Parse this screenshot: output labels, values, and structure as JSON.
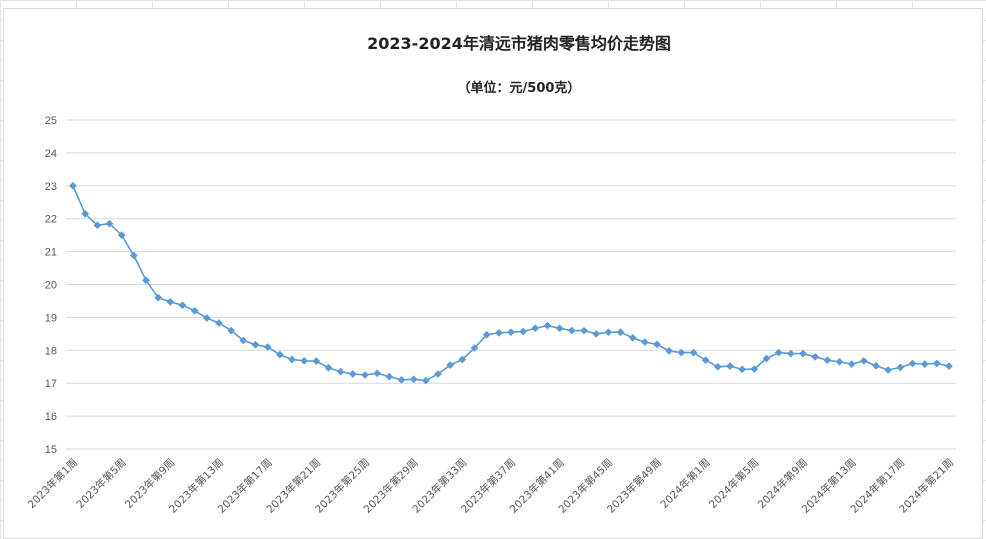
{
  "chart_data": {
    "type": "line",
    "title": "2023-2024年清远市猪肉零售均价走势图",
    "subtitle": "（单位：元/500克）",
    "xlabel": "",
    "ylabel": "",
    "ylim": [
      15,
      25
    ],
    "yticks": [
      "25",
      "24",
      "23",
      "22",
      "21",
      "20",
      "19",
      "18",
      "17",
      "16",
      "15"
    ],
    "grid": true,
    "legend": "none",
    "series_color": "#5b9bd5",
    "x_tick_labels": [
      "2023年第1周",
      "2023年第5周",
      "2023年第9周",
      "2023年第13周",
      "2023年第17周",
      "2023年第21周",
      "2023年第25周",
      "2023年第29周",
      "2023年第33周",
      "2023年第37周",
      "2023年第41周",
      "2023年第45周",
      "2023年第49周",
      "2024年第1周",
      "2024年第5周",
      "2024年第9周",
      "2024年第13周",
      "2024年第17周",
      "2024年第21周"
    ],
    "series": [
      {
        "values": [
          23.0,
          22.15,
          21.8,
          21.85,
          21.5,
          20.88,
          20.13,
          19.6,
          19.47,
          19.37,
          19.2,
          18.98,
          18.83,
          18.6,
          18.3,
          18.17,
          18.1,
          17.87,
          17.72,
          17.68,
          17.67,
          17.47,
          17.35,
          17.28,
          17.25,
          17.3,
          17.2,
          17.1,
          17.12,
          17.08,
          17.28,
          17.55,
          17.72,
          18.07,
          18.47,
          18.53,
          18.55,
          18.57,
          18.67,
          18.75,
          18.67,
          18.6,
          18.6,
          18.5,
          18.55,
          18.55,
          18.38,
          18.25,
          18.18,
          17.98,
          17.93,
          17.93,
          17.7,
          17.5,
          17.52,
          17.42,
          17.43,
          17.75,
          17.93,
          17.9,
          17.9,
          17.8,
          17.7,
          17.65,
          17.58,
          17.68,
          17.53,
          17.4,
          17.48,
          17.6,
          17.58,
          17.6,
          17.52
        ]
      }
    ]
  }
}
